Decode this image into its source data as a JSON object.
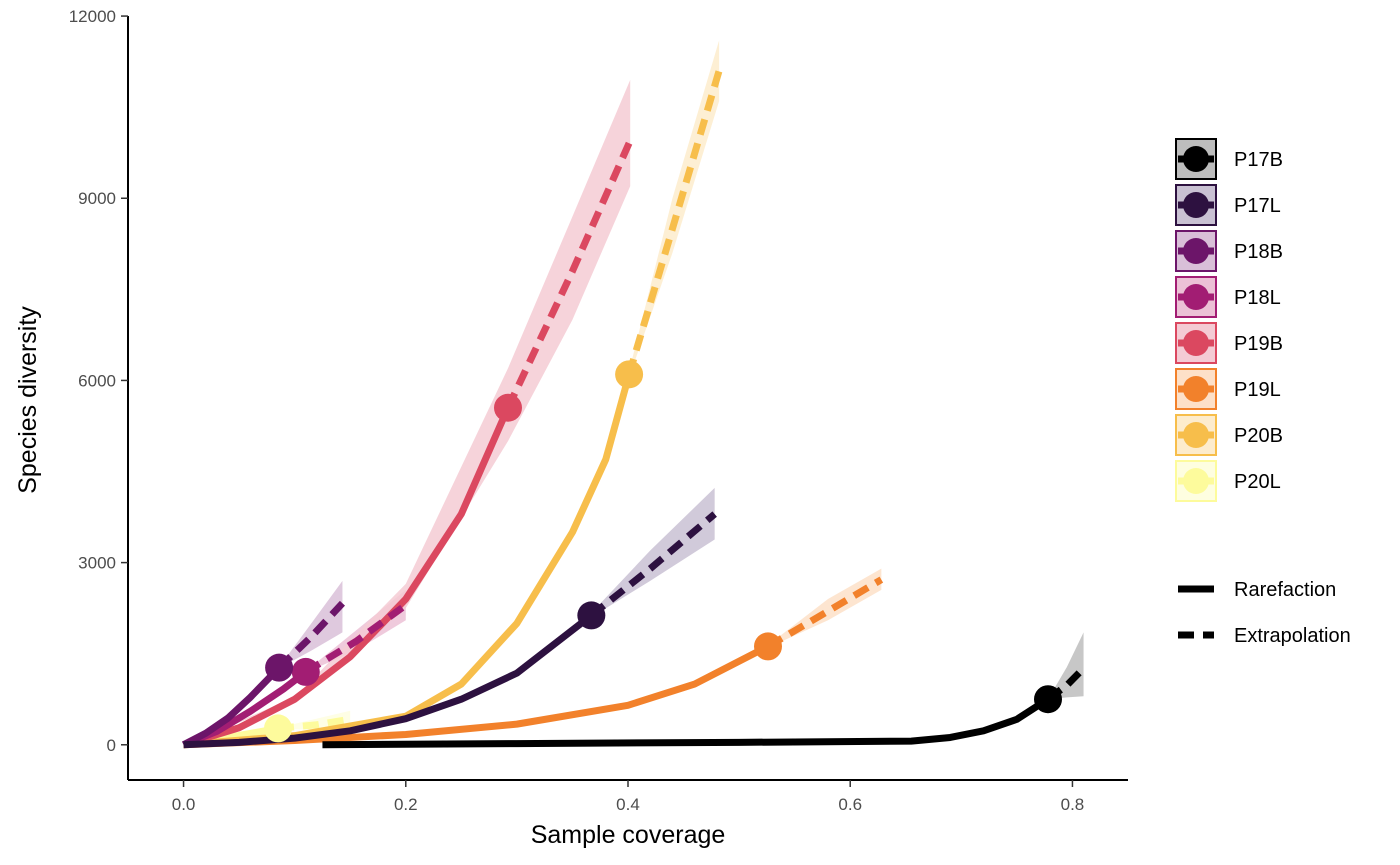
{
  "chart_data": {
    "type": "line",
    "xlabel": "Sample coverage",
    "ylabel": "Species diversity",
    "xlim": [
      -0.05,
      0.85
    ],
    "ylim": [
      -580,
      12100
    ],
    "x_ticks": [
      0.0,
      0.2,
      0.4,
      0.6,
      0.8
    ],
    "x_tick_labels": [
      "0.0",
      "0.2",
      "0.4",
      "0.6",
      "0.8"
    ],
    "y_ticks": [
      0,
      3000,
      6000,
      9000,
      12000
    ],
    "y_tick_labels": [
      "0",
      "3000",
      "6000",
      "9000",
      "12000"
    ],
    "grid": false,
    "legend_position": "right",
    "line_type_legend": [
      "Rarefaction",
      "Extrapolation"
    ],
    "series": [
      {
        "name": "P17B",
        "color": "#000000",
        "band_color": "#bdbdbd",
        "observed": [
          0.778,
          750
        ],
        "rarefaction": [
          [
            0.125,
            0
          ],
          [
            0.3,
            20
          ],
          [
            0.5,
            40
          ],
          [
            0.655,
            60
          ],
          [
            0.69,
            120
          ],
          [
            0.72,
            230
          ],
          [
            0.75,
            420
          ],
          [
            0.778,
            750
          ]
        ],
        "extrapolation": [
          [
            0.778,
            750
          ],
          [
            0.795,
            980
          ],
          [
            0.81,
            1260
          ]
        ],
        "band": [
          [
            0.778,
            750,
            750
          ],
          [
            0.795,
            780,
            1280
          ],
          [
            0.81,
            800,
            1850
          ]
        ]
      },
      {
        "name": "P17L",
        "color": "#2d1140",
        "band_color": "#c9c1d3",
        "observed": [
          0.367,
          2130
        ],
        "rarefaction": [
          [
            0.0,
            0
          ],
          [
            0.05,
            40
          ],
          [
            0.1,
            110
          ],
          [
            0.15,
            230
          ],
          [
            0.2,
            430
          ],
          [
            0.25,
            750
          ],
          [
            0.3,
            1180
          ],
          [
            0.367,
            2130
          ]
        ],
        "extrapolation": [
          [
            0.367,
            2130
          ],
          [
            0.42,
            2900
          ],
          [
            0.478,
            3800
          ]
        ],
        "band": [
          [
            0.367,
            2100,
            2170
          ],
          [
            0.42,
            2700,
            3200
          ],
          [
            0.478,
            3380,
            4230
          ]
        ]
      },
      {
        "name": "P18B",
        "color": "#6c1569",
        "band_color": "#d9bfd8",
        "observed": [
          0.086,
          1270
        ],
        "rarefaction": [
          [
            0.0,
            0
          ],
          [
            0.02,
            190
          ],
          [
            0.04,
            440
          ],
          [
            0.06,
            780
          ],
          [
            0.086,
            1270
          ]
        ],
        "extrapolation": [
          [
            0.086,
            1270
          ],
          [
            0.115,
            1780
          ],
          [
            0.143,
            2330
          ]
        ],
        "band": [
          [
            0.086,
            1260,
            1280
          ],
          [
            0.115,
            1550,
            2000
          ],
          [
            0.143,
            1850,
            2700
          ]
        ]
      },
      {
        "name": "P18L",
        "color": "#a21d73",
        "band_color": "#ecc1d6",
        "observed": [
          0.11,
          1200
        ],
        "rarefaction": [
          [
            0.0,
            0
          ],
          [
            0.03,
            220
          ],
          [
            0.06,
            550
          ],
          [
            0.09,
            920
          ],
          [
            0.11,
            1200
          ]
        ],
        "extrapolation": [
          [
            0.11,
            1200
          ],
          [
            0.155,
            1700
          ],
          [
            0.2,
            2300
          ]
        ],
        "band": [
          [
            0.11,
            1190,
            1210
          ],
          [
            0.155,
            1550,
            1880
          ],
          [
            0.2,
            2050,
            2550
          ]
        ]
      },
      {
        "name": "P19B",
        "color": "#db4860",
        "band_color": "#f4cbd4",
        "observed": [
          0.292,
          5550
        ],
        "rarefaction": [
          [
            0.0,
            0
          ],
          [
            0.05,
            280
          ],
          [
            0.1,
            750
          ],
          [
            0.15,
            1450
          ],
          [
            0.2,
            2400
          ],
          [
            0.25,
            3800
          ],
          [
            0.292,
            5550
          ]
        ],
        "extrapolation": [
          [
            0.292,
            5550
          ],
          [
            0.35,
            7800
          ],
          [
            0.402,
            9950
          ]
        ],
        "band": [
          [
            0.0,
            0,
            0
          ],
          [
            0.1,
            730,
            780
          ],
          [
            0.2,
            2250,
            2650
          ],
          [
            0.292,
            5000,
            6200
          ],
          [
            0.35,
            7000,
            8700
          ],
          [
            0.402,
            9200,
            10950
          ]
        ]
      },
      {
        "name": "P19L",
        "color": "#f2812b",
        "band_color": "#fde0c8",
        "observed": [
          0.526,
          1620
        ],
        "rarefaction": [
          [
            0.0,
            0
          ],
          [
            0.1,
            70
          ],
          [
            0.2,
            170
          ],
          [
            0.3,
            340
          ],
          [
            0.4,
            650
          ],
          [
            0.46,
            1000
          ],
          [
            0.526,
            1620
          ]
        ],
        "extrapolation": [
          [
            0.526,
            1620
          ],
          [
            0.58,
            2200
          ],
          [
            0.628,
            2720
          ]
        ],
        "band": [
          [
            0.526,
            1600,
            1640
          ],
          [
            0.58,
            2050,
            2400
          ],
          [
            0.628,
            2550,
            2900
          ]
        ]
      },
      {
        "name": "P20B",
        "color": "#f7be4b",
        "band_color": "#fdeccd",
        "observed": [
          0.401,
          6100
        ],
        "rarefaction": [
          [
            0.0,
            0
          ],
          [
            0.1,
            150
          ],
          [
            0.2,
            470
          ],
          [
            0.25,
            1000
          ],
          [
            0.3,
            2000
          ],
          [
            0.35,
            3500
          ],
          [
            0.38,
            4700
          ],
          [
            0.401,
            6100
          ]
        ],
        "extrapolation": [
          [
            0.401,
            6100
          ],
          [
            0.44,
            8500
          ],
          [
            0.482,
            11100
          ]
        ],
        "band": [
          [
            0.401,
            6050,
            6150
          ],
          [
            0.44,
            8100,
            9000
          ],
          [
            0.482,
            10600,
            11600
          ]
        ]
      },
      {
        "name": "P20L",
        "color": "#fdfb9c",
        "band_color": "#fefee0",
        "observed": [
          0.085,
          270
        ],
        "rarefaction": [
          [
            0.0,
            0
          ],
          [
            0.04,
            120
          ],
          [
            0.085,
            270
          ]
        ],
        "extrapolation": [
          [
            0.085,
            270
          ],
          [
            0.12,
            330
          ],
          [
            0.15,
            420
          ]
        ],
        "band": [
          [
            0.085,
            260,
            280
          ],
          [
            0.12,
            250,
            430
          ],
          [
            0.15,
            300,
            560
          ]
        ]
      }
    ]
  }
}
